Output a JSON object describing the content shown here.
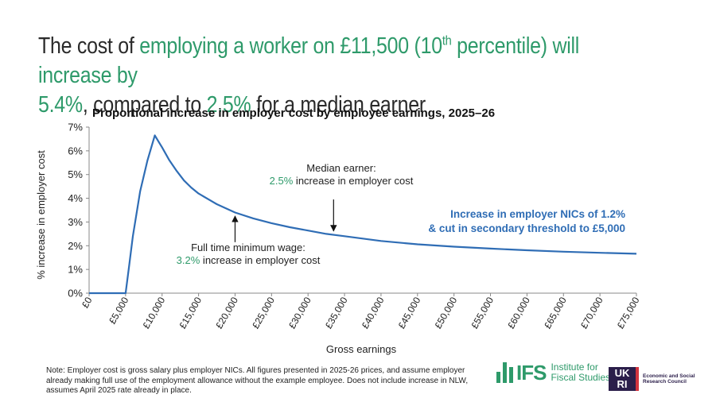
{
  "headline": {
    "part1": "The cost of ",
    "part2": "employing a worker on £11,500 (10",
    "part2_sup": "th",
    "part3": " percentile) will increase by",
    "part4": "5.4%",
    "part5": ", compared to ",
    "part6": "2.5%",
    "part7": " for a median earner"
  },
  "chart_data": {
    "type": "line",
    "title": "Proportional increase in employer cost by employee earnings, 2025–26",
    "xlabel": "Gross earnings",
    "ylabel": "% increase in employer cost",
    "xlim": [
      0,
      75000
    ],
    "ylim": [
      0,
      7
    ],
    "x_ticks": [
      "£0",
      "£5,000",
      "£10,000",
      "£15,000",
      "£20,000",
      "£25,000",
      "£30,000",
      "£35,000",
      "£40,000",
      "£45,000",
      "£50,000",
      "£55,000",
      "£60,000",
      "£65,000",
      "£70,000",
      "£75,000"
    ],
    "y_ticks": [
      "0%",
      "1%",
      "2%",
      "3%",
      "4%",
      "5%",
      "6%",
      "7%"
    ],
    "grid": false,
    "series": [
      {
        "name": "Increase in employer NICs of 1.2%\n& cut in secondary threshold to £5,000",
        "color": "#2f6db5",
        "x": [
          0,
          5000,
          5500,
          6000,
          7000,
          8000,
          9000,
          9500,
          10000,
          11000,
          12000,
          13000,
          14000,
          15000,
          17500,
          20000,
          22500,
          25000,
          27500,
          30000,
          32500,
          35000,
          40000,
          45000,
          50000,
          55000,
          60000,
          65000,
          70000,
          75000
        ],
        "y": [
          0,
          0,
          1.2,
          2.4,
          4.3,
          5.6,
          6.65,
          6.4,
          6.15,
          5.6,
          5.15,
          4.75,
          4.45,
          4.2,
          3.75,
          3.4,
          3.15,
          2.95,
          2.78,
          2.64,
          2.5,
          2.4,
          2.2,
          2.06,
          1.96,
          1.88,
          1.81,
          1.75,
          1.7,
          1.66
        ]
      }
    ],
    "annotations": [
      {
        "line1": "Median earner:",
        "pct": "2.5%",
        "rest": " increase in employer cost",
        "arrow_x": 33500,
        "arrow_from": 3.95,
        "arrow_to": 2.62
      },
      {
        "line1": "Full time minimum wage:",
        "pct": "3.2%",
        "rest": " increase in employer cost",
        "arrow_x": 20000,
        "arrow_from": 2.15,
        "arrow_to": 3.25
      }
    ]
  },
  "note": "Note: Employer cost is gross salary plus employer NICs. All figures presented in 2025-26 prices, and assume employer already making full use of the employment allowance without the example employee. Does not include increase in NLW, assumes April 2025 rate already in place.",
  "logos": {
    "ifs_word": "IFS",
    "ifs_name": "Institute for Fiscal Studies",
    "ukri_mark": "UK RI",
    "ukri_text": "Economic and Social Research Council"
  },
  "colors": {
    "accent_green": "#2e9a6a",
    "series_blue": "#2f6db5"
  }
}
